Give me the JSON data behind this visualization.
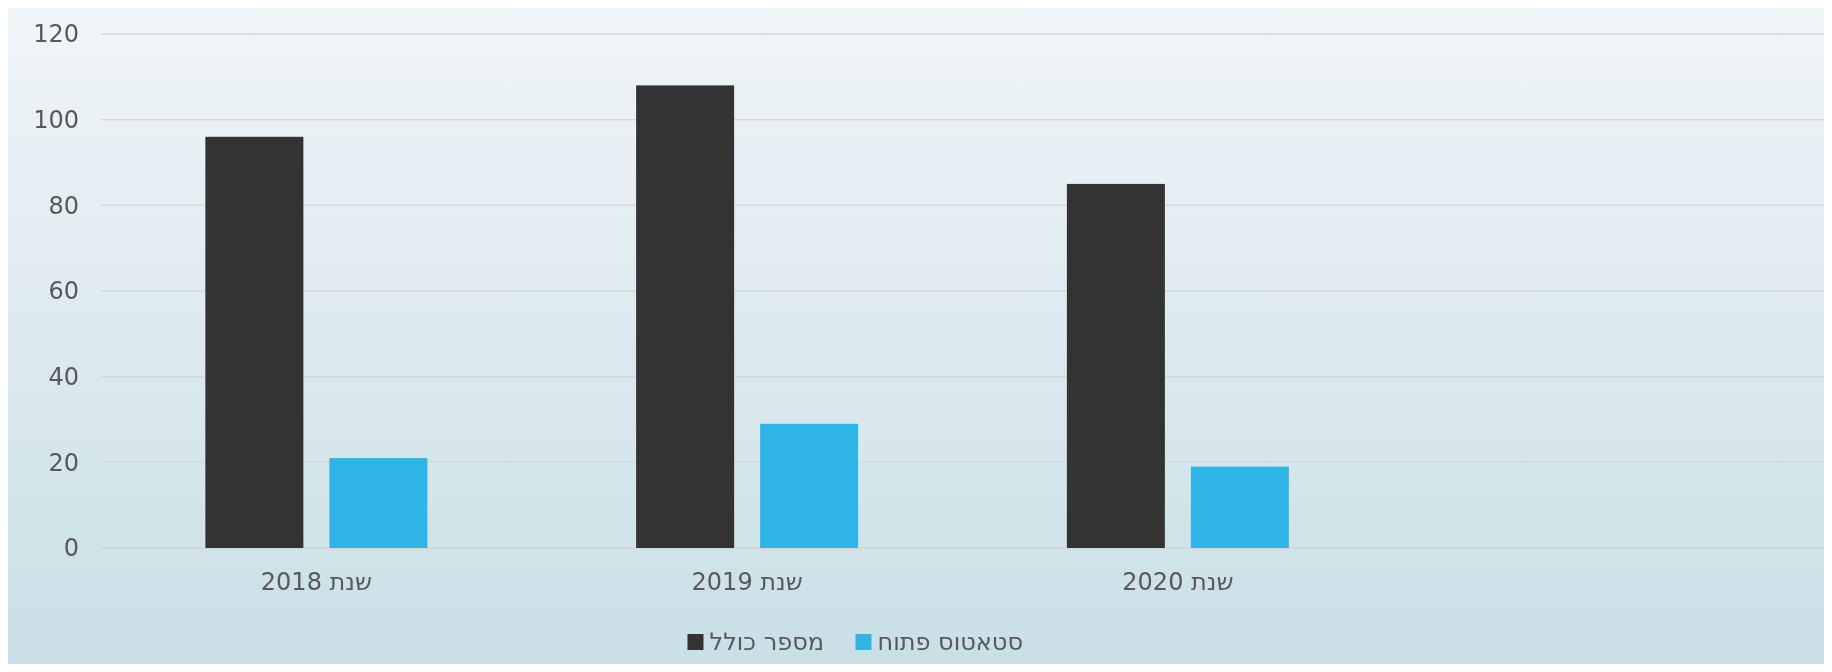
{
  "chart_data": {
    "type": "bar",
    "categories": [
      "שנת 2018",
      "שנת 2019",
      "שנת 2020",
      null
    ],
    "series": [
      {
        "name": "מספר כולל",
        "color": "#333333",
        "values": [
          96,
          108,
          85,
          null
        ]
      },
      {
        "name": "סטאטוס פתוח",
        "color": "#2fb4e6",
        "values": [
          21,
          29,
          19,
          null
        ]
      }
    ],
    "ylim": [
      0,
      120
    ],
    "yticks": [
      0,
      20,
      40,
      60,
      80,
      100,
      120
    ],
    "grid": "y",
    "legend": "bottom"
  }
}
